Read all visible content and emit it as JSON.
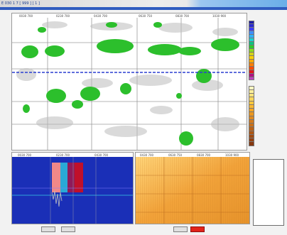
{
  "window": {
    "title": "E 030 1 7  [ 999 ] [ 1 ]"
  },
  "main_panel": {
    "top_ticks": [
      "0030 700",
      "0230 700",
      "0430 700",
      "0630 750",
      "0830 700",
      "1030 900"
    ],
    "left_axis": [
      "",
      "",
      "",
      "",
      ""
    ]
  },
  "legend_top": {
    "headers": [
      "",
      ""
    ],
    "colors": [
      "#1a1aa6",
      "#2a2acf",
      "#3c3cff",
      "#3f8fff",
      "#2fb0ff",
      "#1fd0d0",
      "#10c080",
      "#2bcc2b",
      "#8cdc1e",
      "#d2d21c",
      "#ffd000",
      "#ffab00",
      "#ff7f00",
      "#ff4d00",
      "#e01a1a",
      "#b01080",
      "#c040c0"
    ],
    "labels": [
      "",
      "",
      "",
      "",
      "",
      "",
      "",
      "",
      "",
      "",
      "",
      "",
      "",
      "",
      "",
      "",
      ""
    ],
    "values": [
      "",
      "",
      "",
      "",
      "",
      "",
      "",
      "",
      "",
      "",
      "",
      "",
      "",
      "",
      "",
      "",
      ""
    ]
  },
  "legend_bottom": {
    "headers": [
      "",
      ""
    ],
    "colors": [
      "#fff7c0",
      "#ffef9a",
      "#ffe37a",
      "#ffd65a",
      "#ffc840",
      "#ffb830",
      "#f5a623",
      "#eb9720",
      "#e0891e",
      "#d47b1b",
      "#c86f18",
      "#ba6216",
      "#ad5614",
      "#a04b12",
      "#934010",
      "#86370e"
    ],
    "labels": [
      "",
      "",
      "",
      "",
      "",
      "",
      "",
      "",
      "",
      "",
      "",
      "",
      "",
      "",
      "",
      ""
    ],
    "values": [
      "",
      "",
      "",
      "",
      "",
      "",
      "",
      "",
      "",
      "",
      "",
      "",
      "",
      "",
      "",
      ""
    ]
  },
  "bottom_left": {
    "top_ticks": [
      "0030 700",
      "0230 700",
      "0430 700"
    ],
    "y_label": "",
    "caption_line1": "",
    "caption_line2": ""
  },
  "bottom_center": {
    "top_ticks": [
      "0430 700",
      "0630 750",
      "0830 700",
      "1030 900"
    ]
  },
  "buttons": {
    "left_a": "",
    "left_b": "",
    "center_a": "",
    "center_b": ""
  },
  "info": {
    "title": "",
    "rows": [
      "",
      "",
      "",
      "",
      "",
      "",
      "",
      "",
      "",
      "",
      ""
    ],
    "alert": ""
  }
}
